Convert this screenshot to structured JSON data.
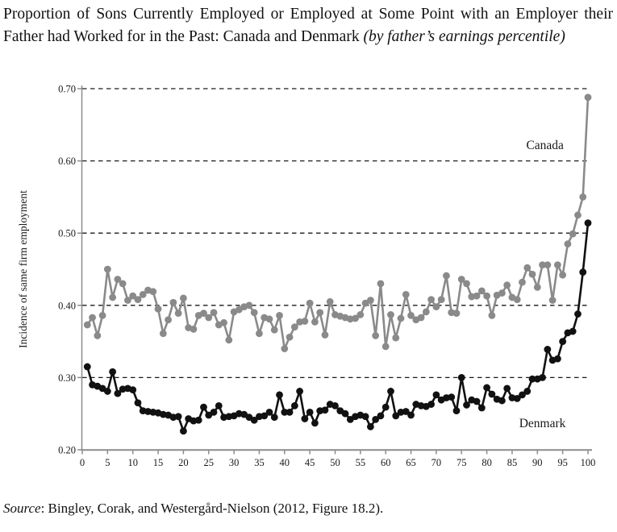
{
  "title": {
    "main": "Proportion of Sons Currently Employed or Employed at Some Point with an Employer their Father had Worked for in the Past: Canada and Denmark ",
    "italic": "(by father’s earnings percentile)"
  },
  "source": {
    "label": "Source",
    "text": ": Bingley, Corak, and Westergård-Nielson (2012, Figure 18.2)."
  },
  "chart_data": {
    "type": "line",
    "title": "",
    "xlabel": "",
    "ylabel": "Incidence of same firm employment",
    "x_unit": "father's earnings percentile",
    "x_range": {
      "from": 1,
      "to": 100,
      "step": 1
    },
    "xlim": [
      0,
      100
    ],
    "ylim": [
      0.2,
      0.7
    ],
    "x_tick_labels": [
      "0",
      "5",
      "10",
      "15",
      "20",
      "25",
      "30",
      "35",
      "40",
      "45",
      "50",
      "55",
      "60",
      "65",
      "70",
      "75",
      "80",
      "85",
      "90",
      "95",
      "100"
    ],
    "y_tick_labels": [
      "0.20",
      "0.30",
      "0.40",
      "0.50",
      "0.60",
      "0.70"
    ],
    "grid": "horizontal dashed gridlines at 0.30, 0.40, 0.50, 0.60, 0.70",
    "legend_position": "in-plot text annotations",
    "series": [
      {
        "name": "Canada",
        "color": "#8a8a8a",
        "values": [
          0.373,
          0.383,
          0.358,
          0.386,
          0.45,
          0.411,
          0.436,
          0.43,
          0.407,
          0.413,
          0.408,
          0.415,
          0.421,
          0.419,
          0.395,
          0.361,
          0.38,
          0.404,
          0.389,
          0.41,
          0.369,
          0.367,
          0.386,
          0.389,
          0.383,
          0.39,
          0.373,
          0.376,
          0.352,
          0.391,
          0.394,
          0.398,
          0.4,
          0.39,
          0.361,
          0.383,
          0.381,
          0.366,
          0.386,
          0.34,
          0.356,
          0.37,
          0.377,
          0.378,
          0.403,
          0.377,
          0.39,
          0.359,
          0.405,
          0.387,
          0.385,
          0.383,
          0.381,
          0.382,
          0.387,
          0.403,
          0.407,
          0.358,
          0.43,
          0.343,
          0.387,
          0.355,
          0.382,
          0.415,
          0.386,
          0.38,
          0.383,
          0.391,
          0.408,
          0.398,
          0.408,
          0.441,
          0.39,
          0.389,
          0.436,
          0.43,
          0.412,
          0.413,
          0.42,
          0.413,
          0.386,
          0.414,
          0.417,
          0.428,
          0.411,
          0.408,
          0.432,
          0.452,
          0.443,
          0.425,
          0.456,
          0.456,
          0.407,
          0.456,
          0.442,
          0.485,
          0.499,
          0.525,
          0.55,
          0.688
        ]
      },
      {
        "name": "Denmark",
        "color": "#111111",
        "values": [
          0.315,
          0.29,
          0.288,
          0.285,
          0.281,
          0.308,
          0.278,
          0.284,
          0.285,
          0.283,
          0.265,
          0.254,
          0.253,
          0.252,
          0.251,
          0.249,
          0.248,
          0.245,
          0.246,
          0.226,
          0.243,
          0.24,
          0.241,
          0.259,
          0.248,
          0.252,
          0.261,
          0.245,
          0.246,
          0.247,
          0.25,
          0.249,
          0.245,
          0.241,
          0.246,
          0.247,
          0.252,
          0.245,
          0.276,
          0.252,
          0.252,
          0.261,
          0.281,
          0.243,
          0.252,
          0.237,
          0.254,
          0.255,
          0.263,
          0.261,
          0.254,
          0.25,
          0.242,
          0.246,
          0.248,
          0.246,
          0.232,
          0.242,
          0.247,
          0.259,
          0.281,
          0.247,
          0.252,
          0.253,
          0.248,
          0.263,
          0.261,
          0.26,
          0.263,
          0.276,
          0.269,
          0.272,
          0.273,
          0.254,
          0.3,
          0.262,
          0.269,
          0.267,
          0.258,
          0.286,
          0.277,
          0.27,
          0.268,
          0.285,
          0.272,
          0.271,
          0.276,
          0.281,
          0.298,
          0.298,
          0.3,
          0.339,
          0.324,
          0.326,
          0.35,
          0.362,
          0.364,
          0.388,
          0.446,
          0.514
        ]
      }
    ],
    "annotations": [
      {
        "text": "Canada",
        "x": 91.5,
        "y": 0.622
      },
      {
        "text": "Denmark",
        "x": 91.0,
        "y": 0.237
      }
    ]
  }
}
